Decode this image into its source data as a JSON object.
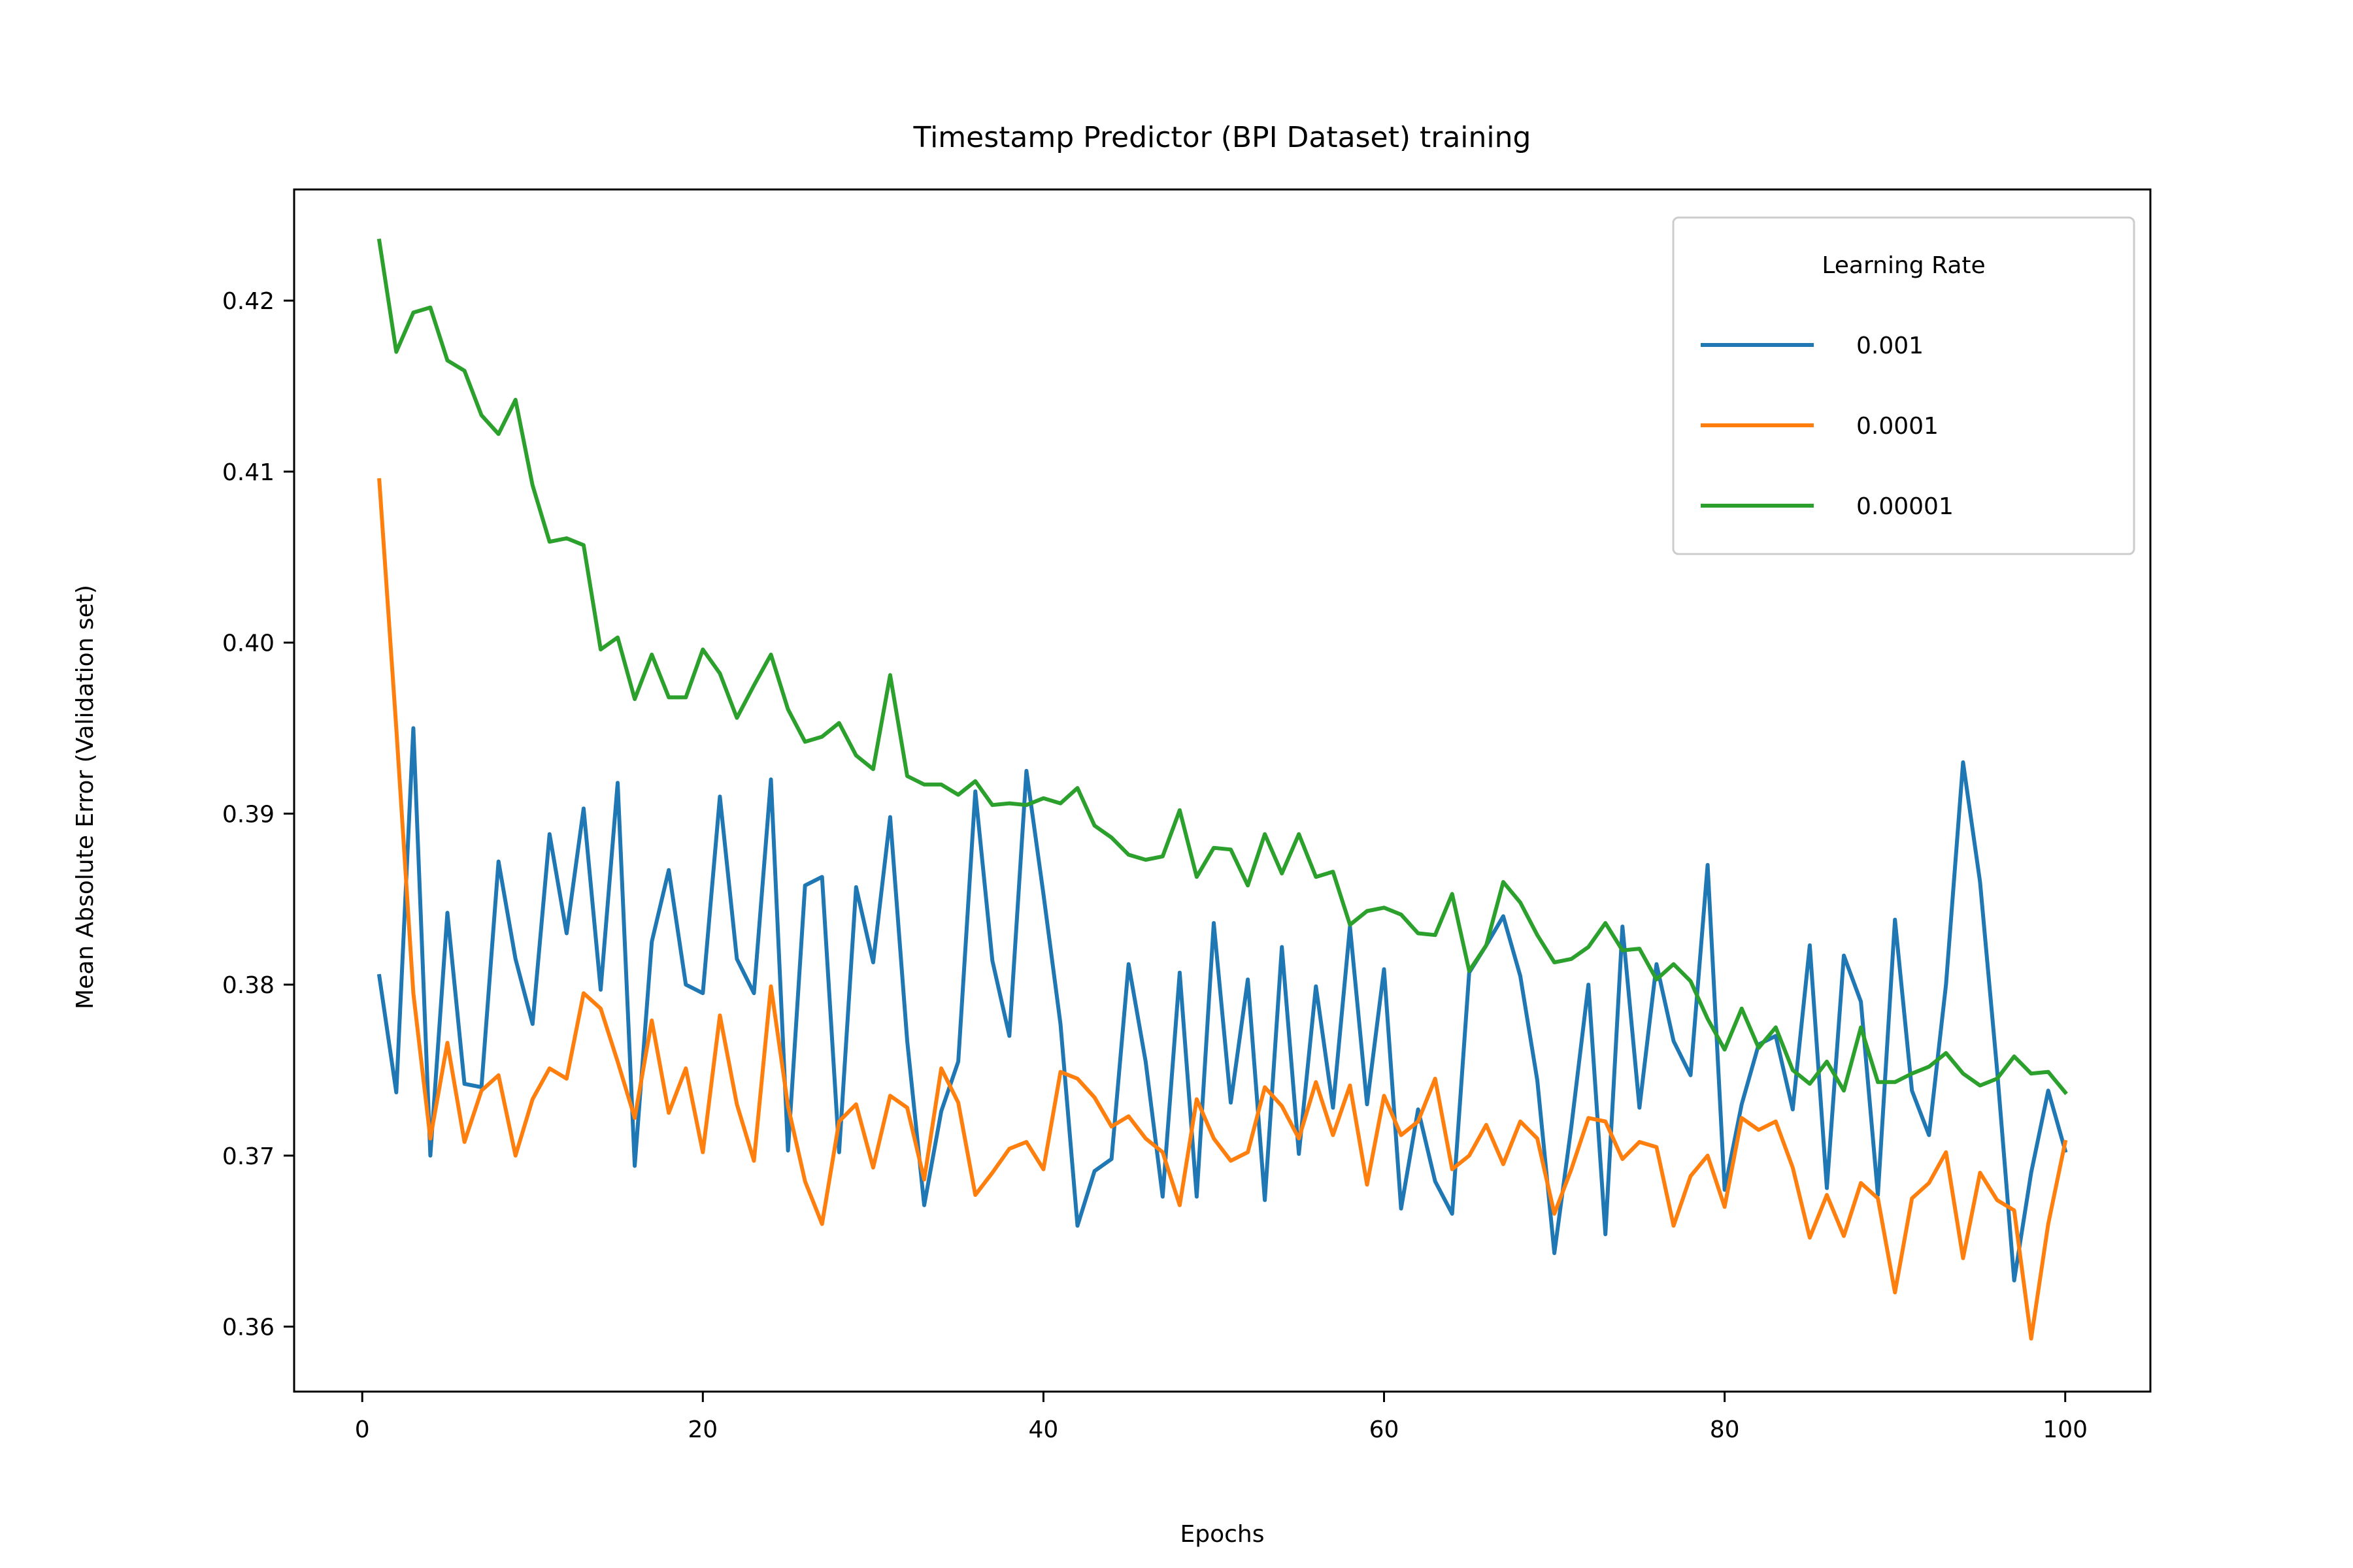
{
  "chart_data": {
    "type": "line",
    "title": "Timestamp Predictor (BPI Dataset) training",
    "xlabel": "Epochs",
    "ylabel": "Mean Absolute Error (Validation set)",
    "xlim": [
      -4,
      105
    ],
    "ylim": [
      0.3562,
      0.4265
    ],
    "xticks": [
      0,
      20,
      40,
      60,
      80,
      100
    ],
    "yticks": [
      0.36,
      0.37,
      0.38,
      0.39,
      0.4,
      0.41,
      0.42
    ],
    "ytick_labels": [
      "0.36",
      "0.37",
      "0.38",
      "0.39",
      "0.40",
      "0.41",
      "0.42"
    ],
    "grid": false,
    "legend": {
      "title": "Learning Rate",
      "position": "top-right"
    },
    "x": [
      1,
      2,
      3,
      4,
      5,
      6,
      7,
      8,
      9,
      10,
      11,
      12,
      13,
      14,
      15,
      16,
      17,
      18,
      19,
      20,
      21,
      22,
      23,
      24,
      25,
      26,
      27,
      28,
      29,
      30,
      31,
      32,
      33,
      34,
      35,
      36,
      37,
      38,
      39,
      40,
      41,
      42,
      43,
      44,
      45,
      46,
      47,
      48,
      49,
      50,
      51,
      52,
      53,
      54,
      55,
      56,
      57,
      58,
      59,
      60,
      61,
      62,
      63,
      64,
      65,
      66,
      67,
      68,
      69,
      70,
      71,
      72,
      73,
      74,
      75,
      76,
      77,
      78,
      79,
      80,
      81,
      82,
      83,
      84,
      85,
      86,
      87,
      88,
      89,
      90,
      91,
      92,
      93,
      94,
      95,
      96,
      97,
      98,
      99,
      100
    ],
    "series": [
      {
        "name": "0.001",
        "color": "#1f77b4",
        "values": [
          0.3805,
          0.3737,
          0.395,
          0.37,
          0.3842,
          0.3742,
          0.374,
          0.3872,
          0.3815,
          0.3777,
          0.3888,
          0.383,
          0.3903,
          0.3797,
          0.3918,
          0.3694,
          0.3825,
          0.3867,
          0.38,
          0.3795,
          0.391,
          0.3815,
          0.3795,
          0.392,
          0.3703,
          0.3858,
          0.3863,
          0.3702,
          0.3857,
          0.3813,
          0.3898,
          0.3767,
          0.3671,
          0.3726,
          0.3755,
          0.3913,
          0.3814,
          0.377,
          0.3925,
          0.3853,
          0.3777,
          0.3659,
          0.3691,
          0.3698,
          0.3812,
          0.3755,
          0.3676,
          0.3807,
          0.3676,
          0.3836,
          0.3731,
          0.3803,
          0.3674,
          0.3822,
          0.3701,
          0.3799,
          0.3728,
          0.3834,
          0.373,
          0.3809,
          0.3669,
          0.3727,
          0.3685,
          0.3666,
          0.3807,
          0.3823,
          0.384,
          0.3805,
          0.3744,
          0.3643,
          0.3717,
          0.38,
          0.3654,
          0.3834,
          0.3728,
          0.3812,
          0.3767,
          0.3747,
          0.387,
          0.368,
          0.373,
          0.3765,
          0.377,
          0.3727,
          0.3823,
          0.3681,
          0.3817,
          0.379,
          0.3677,
          0.3838,
          0.3738,
          0.3712,
          0.38,
          0.393,
          0.386,
          0.375,
          0.3627,
          0.369,
          0.3738,
          0.3703
        ]
      },
      {
        "name": "0.0001",
        "color": "#ff7f0e",
        "values": [
          0.4095,
          0.395,
          0.3795,
          0.371,
          0.3766,
          0.3708,
          0.3738,
          0.3747,
          0.37,
          0.3733,
          0.3751,
          0.3745,
          0.3795,
          0.3786,
          0.3755,
          0.3722,
          0.3779,
          0.3725,
          0.3751,
          0.3702,
          0.3782,
          0.373,
          0.3697,
          0.3799,
          0.3729,
          0.3685,
          0.366,
          0.372,
          0.373,
          0.3693,
          0.3735,
          0.3728,
          0.3686,
          0.3751,
          0.3731,
          0.3677,
          0.369,
          0.3704,
          0.3708,
          0.3692,
          0.3749,
          0.3745,
          0.3734,
          0.3717,
          0.3723,
          0.371,
          0.3702,
          0.3671,
          0.3733,
          0.371,
          0.3697,
          0.3702,
          0.374,
          0.3729,
          0.371,
          0.3743,
          0.3712,
          0.3741,
          0.3683,
          0.3735,
          0.3712,
          0.372,
          0.3745,
          0.3692,
          0.37,
          0.3718,
          0.3695,
          0.372,
          0.371,
          0.3666,
          0.3692,
          0.3722,
          0.372,
          0.3698,
          0.3708,
          0.3705,
          0.3659,
          0.3688,
          0.37,
          0.367,
          0.3722,
          0.3715,
          0.372,
          0.3693,
          0.3652,
          0.3677,
          0.3653,
          0.3684,
          0.3675,
          0.362,
          0.3675,
          0.3684,
          0.3702,
          0.364,
          0.369,
          0.3674,
          0.3668,
          0.3593,
          0.366,
          0.3708
        ]
      },
      {
        "name": "0.00001",
        "color": "#2ca02c",
        "values": [
          0.4235,
          0.417,
          0.4193,
          0.4196,
          0.4165,
          0.4159,
          0.4133,
          0.4122,
          0.4142,
          0.4092,
          0.4059,
          0.4061,
          0.4057,
          0.3996,
          0.4003,
          0.3967,
          0.3993,
          0.3968,
          0.3968,
          0.3996,
          0.3982,
          0.3956,
          0.3975,
          0.3993,
          0.3961,
          0.3942,
          0.3945,
          0.3953,
          0.3934,
          0.3926,
          0.3981,
          0.3922,
          0.3917,
          0.3917,
          0.3911,
          0.3919,
          0.3905,
          0.3906,
          0.3905,
          0.3909,
          0.3906,
          0.3915,
          0.3893,
          0.3886,
          0.3876,
          0.3873,
          0.3875,
          0.3902,
          0.3863,
          0.388,
          0.3879,
          0.3858,
          0.3888,
          0.3865,
          0.3888,
          0.3863,
          0.3866,
          0.3835,
          0.3843,
          0.3845,
          0.3841,
          0.383,
          0.3829,
          0.3853,
          0.3808,
          0.3823,
          0.386,
          0.3848,
          0.3829,
          0.3813,
          0.3815,
          0.3822,
          0.3836,
          0.382,
          0.3821,
          0.3803,
          0.3812,
          0.3802,
          0.378,
          0.3762,
          0.3786,
          0.3763,
          0.3775,
          0.375,
          0.3742,
          0.3755,
          0.3738,
          0.3775,
          0.3743,
          0.3743,
          0.3748,
          0.3752,
          0.376,
          0.3748,
          0.3741,
          0.3745,
          0.3758,
          0.3748,
          0.3749,
          0.3737
        ]
      }
    ]
  }
}
